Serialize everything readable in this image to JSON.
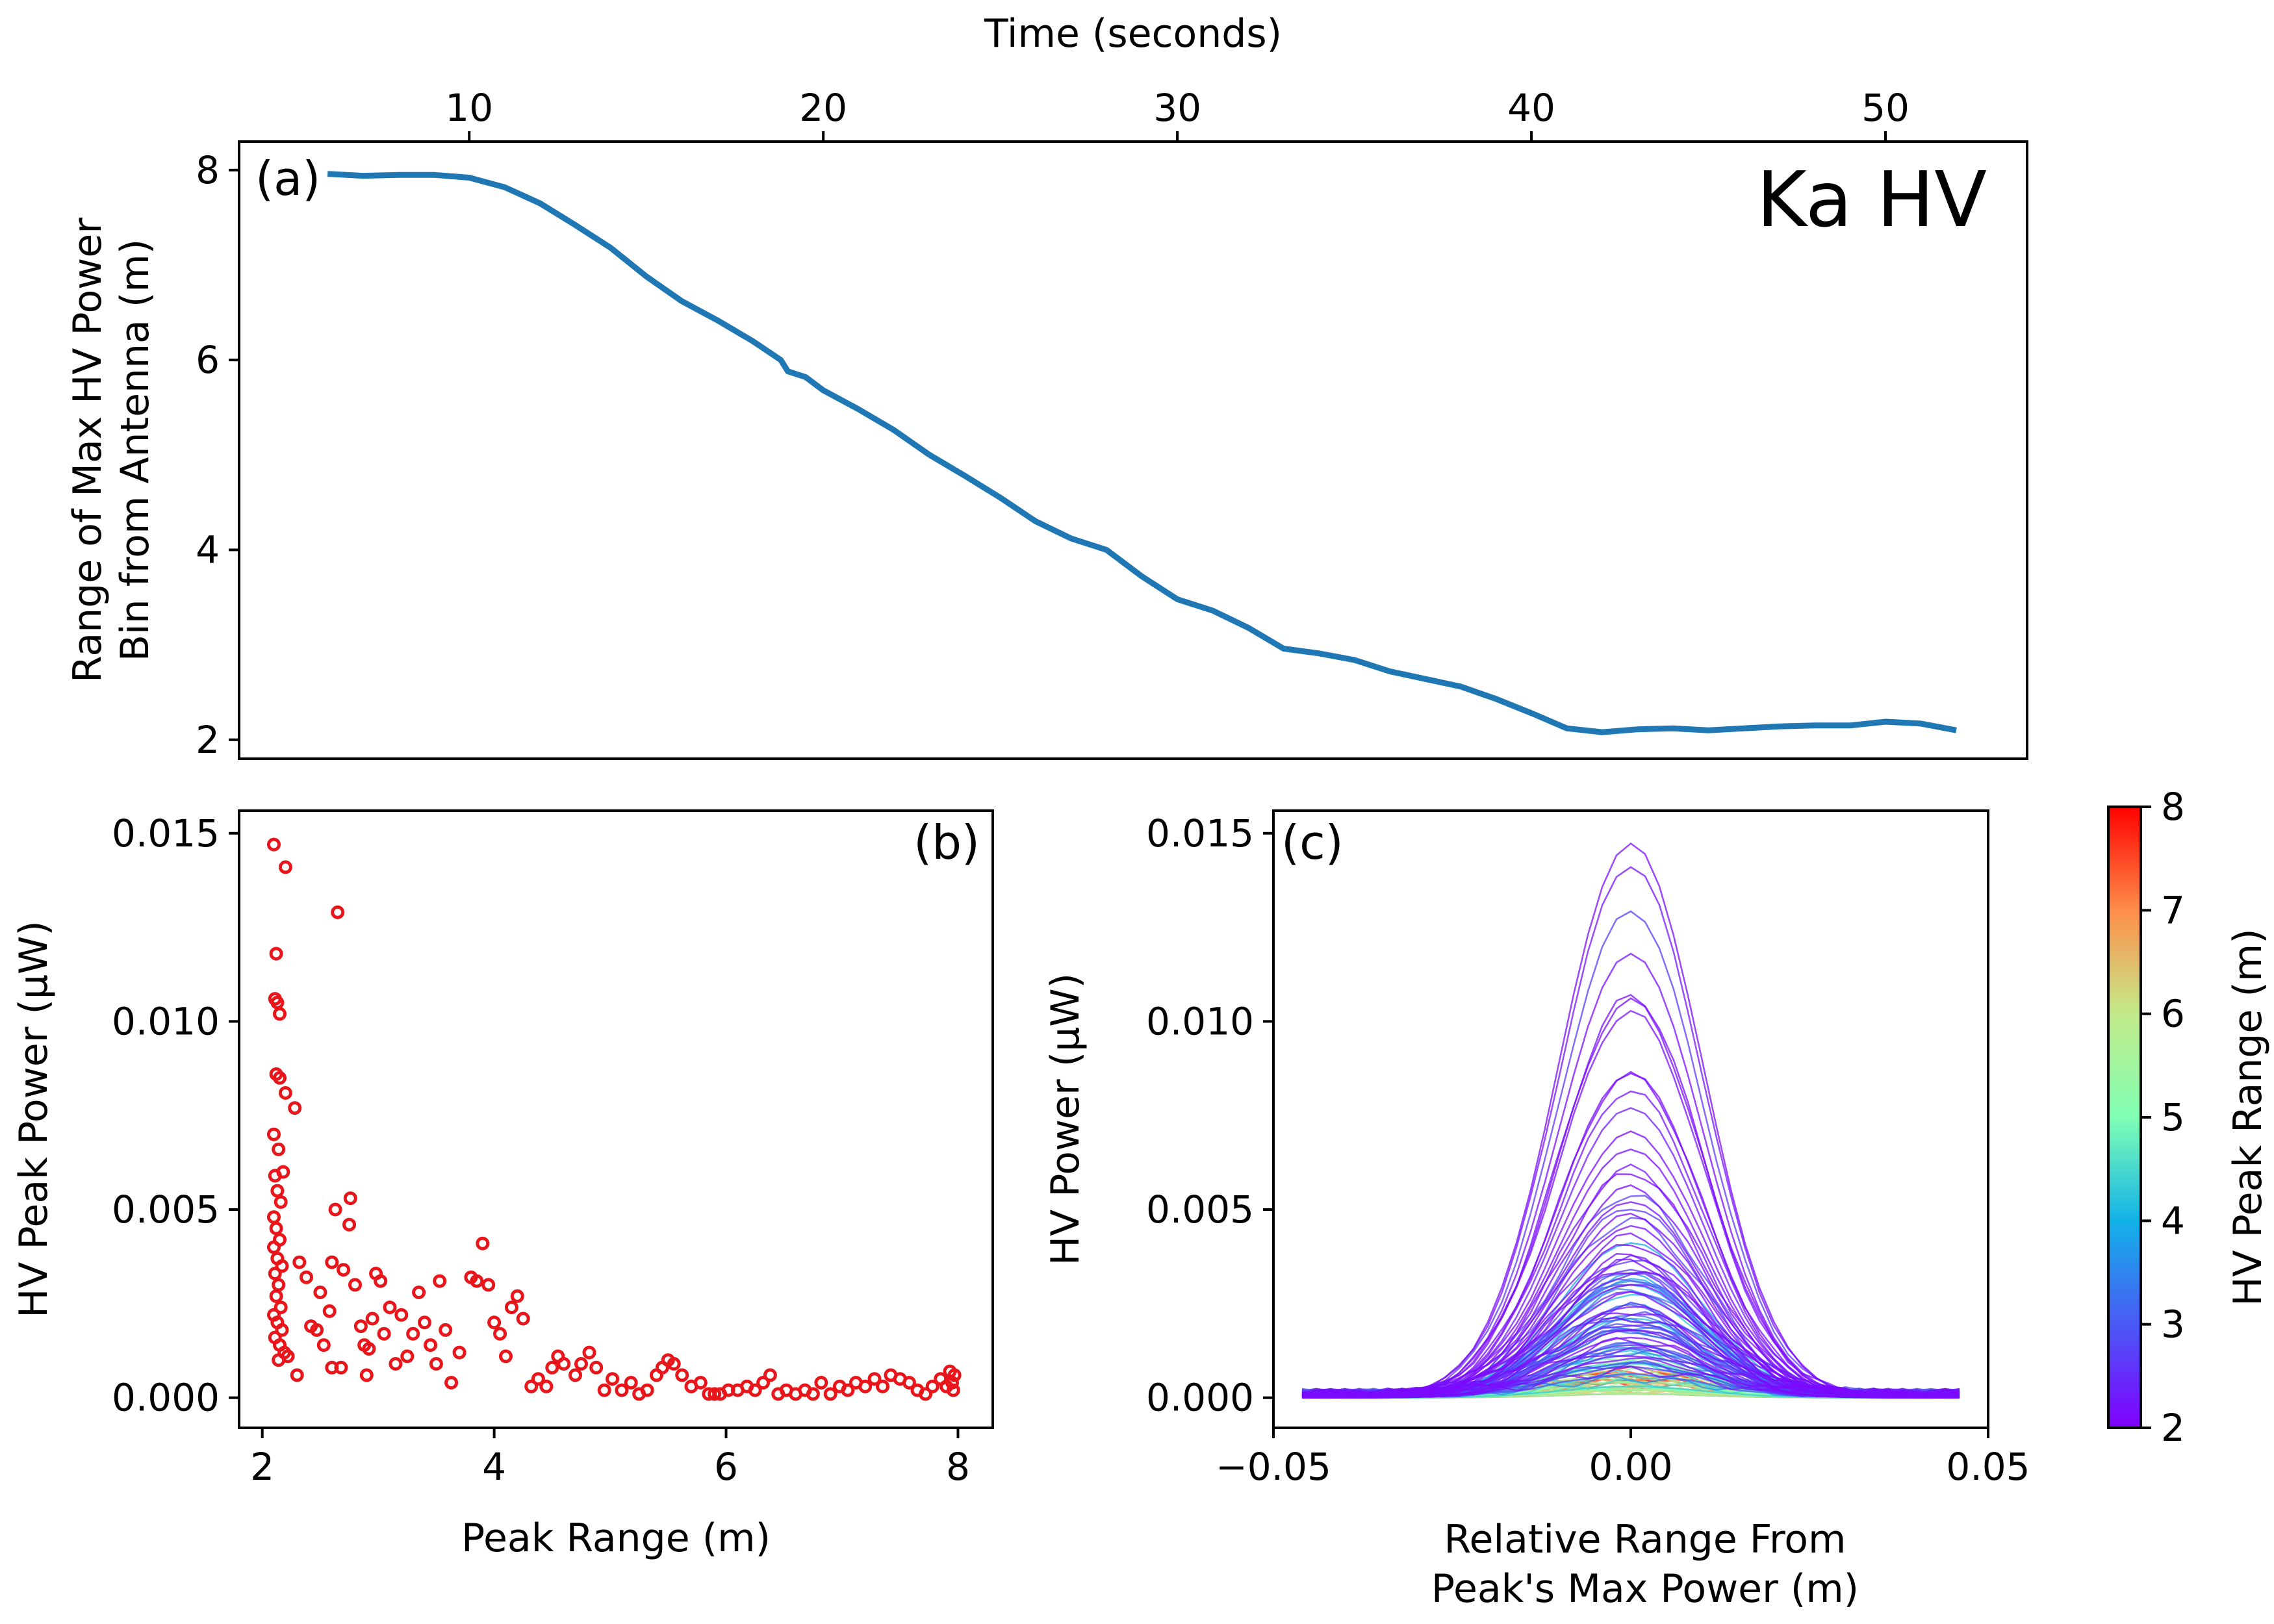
{
  "figure": {
    "annotation": "Ka HV"
  },
  "chart_data": [
    {
      "panel": "(a)",
      "type": "line",
      "xlabel": "Time (seconds)",
      "ylabel_line1": "Range of Max HV Power",
      "ylabel_line2": "Bin from Antenna (m)",
      "xlim": [
        3.5,
        54.0
      ],
      "ylim": [
        1.8,
        8.3
      ],
      "xticks": [
        10,
        20,
        30,
        40,
        50
      ],
      "yticks": [
        2,
        4,
        6,
        8
      ],
      "x_axis_position": "top",
      "line_color": "#1f77b4",
      "x": [
        6,
        7,
        8,
        9,
        10,
        11,
        12,
        13,
        14,
        15,
        16,
        17,
        18,
        18.8,
        19,
        19.5,
        20,
        21,
        22,
        23,
        24,
        25,
        26,
        27,
        28,
        29,
        30,
        31,
        32,
        33,
        34,
        35,
        36,
        37,
        38,
        39,
        40,
        41,
        42,
        43,
        44,
        45,
        46,
        47,
        48,
        49,
        50,
        51,
        52
      ],
      "y": [
        7.96,
        7.94,
        7.95,
        7.95,
        7.92,
        7.82,
        7.65,
        7.42,
        7.18,
        6.88,
        6.62,
        6.42,
        6.2,
        6.0,
        5.88,
        5.82,
        5.68,
        5.48,
        5.26,
        5.0,
        4.78,
        4.55,
        4.3,
        4.12,
        4.0,
        3.72,
        3.48,
        3.36,
        3.18,
        2.96,
        2.91,
        2.84,
        2.72,
        2.64,
        2.56,
        2.43,
        2.28,
        2.12,
        2.08,
        2.11,
        2.12,
        2.1,
        2.12,
        2.14,
        2.15,
        2.15,
        2.19,
        2.17,
        2.1
      ]
    },
    {
      "panel": "(b)",
      "type": "scatter",
      "xlabel": "Peak Range (m)",
      "ylabel": "HV Peak Power (μW)",
      "xlim": [
        1.8,
        8.3
      ],
      "ylim": [
        -0.0008,
        0.0156
      ],
      "xticks": [
        2,
        4,
        6,
        8
      ],
      "yticks": [
        0.0,
        0.005,
        0.01,
        0.015
      ],
      "ytick_labels": [
        "0.000",
        "0.005",
        "0.010",
        "0.015"
      ],
      "marker_color": "#e8161b",
      "points": [
        [
          2.1,
          0.0147
        ],
        [
          2.2,
          0.0141
        ],
        [
          2.65,
          0.0129
        ],
        [
          2.12,
          0.0118
        ],
        [
          2.11,
          0.0106
        ],
        [
          2.13,
          0.0105
        ],
        [
          2.15,
          0.0102
        ],
        [
          2.12,
          0.0086
        ],
        [
          2.15,
          0.0085
        ],
        [
          2.2,
          0.0081
        ],
        [
          2.28,
          0.0077
        ],
        [
          2.1,
          0.007
        ],
        [
          2.14,
          0.0066
        ],
        [
          2.18,
          0.006
        ],
        [
          2.11,
          0.0059
        ],
        [
          2.13,
          0.0055
        ],
        [
          2.16,
          0.0052
        ],
        [
          2.1,
          0.0048
        ],
        [
          2.12,
          0.0045
        ],
        [
          2.15,
          0.0042
        ],
        [
          2.1,
          0.004
        ],
        [
          2.13,
          0.0037
        ],
        [
          2.17,
          0.0035
        ],
        [
          2.11,
          0.0033
        ],
        [
          2.14,
          0.003
        ],
        [
          2.12,
          0.0027
        ],
        [
          2.16,
          0.0024
        ],
        [
          2.1,
          0.0022
        ],
        [
          2.13,
          0.002
        ],
        [
          2.17,
          0.0018
        ],
        [
          2.11,
          0.0016
        ],
        [
          2.15,
          0.0014
        ],
        [
          2.19,
          0.0012
        ],
        [
          2.14,
          0.001
        ],
        [
          2.22,
          0.0011
        ],
        [
          2.3,
          0.0006
        ],
        [
          2.32,
          0.0036
        ],
        [
          2.38,
          0.0032
        ],
        [
          2.42,
          0.0019
        ],
        [
          2.47,
          0.0018
        ],
        [
          2.5,
          0.0028
        ],
        [
          2.53,
          0.0014
        ],
        [
          2.58,
          0.0023
        ],
        [
          2.6,
          0.0036
        ],
        [
          2.63,
          0.005
        ],
        [
          2.6,
          0.0008
        ],
        [
          2.68,
          0.0008
        ],
        [
          2.7,
          0.0034
        ],
        [
          2.75,
          0.0046
        ],
        [
          2.76,
          0.0053
        ],
        [
          2.8,
          0.003
        ],
        [
          2.85,
          0.0019
        ],
        [
          2.88,
          0.0014
        ],
        [
          2.9,
          0.0006
        ],
        [
          2.92,
          0.0013
        ],
        [
          2.95,
          0.0021
        ],
        [
          2.98,
          0.0033
        ],
        [
          3.02,
          0.0031
        ],
        [
          3.05,
          0.0017
        ],
        [
          3.1,
          0.0024
        ],
        [
          3.15,
          0.0009
        ],
        [
          3.2,
          0.0022
        ],
        [
          3.25,
          0.0011
        ],
        [
          3.3,
          0.0017
        ],
        [
          3.35,
          0.0028
        ],
        [
          3.4,
          0.002
        ],
        [
          3.45,
          0.0014
        ],
        [
          3.5,
          0.0009
        ],
        [
          3.53,
          0.0031
        ],
        [
          3.58,
          0.0018
        ],
        [
          3.63,
          0.0004
        ],
        [
          3.7,
          0.0012
        ],
        [
          3.8,
          0.0032
        ],
        [
          3.85,
          0.0031
        ],
        [
          3.9,
          0.0041
        ],
        [
          3.95,
          0.003
        ],
        [
          4.0,
          0.002
        ],
        [
          4.05,
          0.0017
        ],
        [
          4.1,
          0.0011
        ],
        [
          4.15,
          0.0024
        ],
        [
          4.2,
          0.0027
        ],
        [
          4.25,
          0.0021
        ],
        [
          4.32,
          0.0003
        ],
        [
          4.38,
          0.0005
        ],
        [
          4.45,
          0.0003
        ],
        [
          4.5,
          0.0008
        ],
        [
          4.55,
          0.0011
        ],
        [
          4.6,
          0.0009
        ],
        [
          4.7,
          0.0006
        ],
        [
          4.75,
          0.0009
        ],
        [
          4.82,
          0.0012
        ],
        [
          4.88,
          0.0008
        ],
        [
          4.95,
          0.0002
        ],
        [
          5.02,
          0.0005
        ],
        [
          5.1,
          0.0002
        ],
        [
          5.18,
          0.0004
        ],
        [
          5.25,
          0.0001
        ],
        [
          5.32,
          0.0002
        ],
        [
          5.4,
          0.0006
        ],
        [
          5.45,
          0.0008
        ],
        [
          5.5,
          0.001
        ],
        [
          5.55,
          0.0009
        ],
        [
          5.62,
          0.0006
        ],
        [
          5.7,
          0.0003
        ],
        [
          5.78,
          0.0004
        ],
        [
          5.85,
          0.0001
        ],
        [
          5.9,
          0.0001
        ],
        [
          5.95,
          0.0001
        ],
        [
          6.02,
          0.0002
        ],
        [
          6.1,
          0.0002
        ],
        [
          6.18,
          0.0003
        ],
        [
          6.25,
          0.0002
        ],
        [
          6.32,
          0.0004
        ],
        [
          6.38,
          0.0006
        ],
        [
          6.45,
          0.0001
        ],
        [
          6.52,
          0.0002
        ],
        [
          6.6,
          0.0001
        ],
        [
          6.68,
          0.0002
        ],
        [
          6.75,
          0.0001
        ],
        [
          6.82,
          0.0004
        ],
        [
          6.9,
          0.0001
        ],
        [
          6.98,
          0.0003
        ],
        [
          7.05,
          0.0002
        ],
        [
          7.12,
          0.0004
        ],
        [
          7.2,
          0.0003
        ],
        [
          7.28,
          0.0005
        ],
        [
          7.35,
          0.0003
        ],
        [
          7.42,
          0.0006
        ],
        [
          7.5,
          0.0005
        ],
        [
          7.58,
          0.0004
        ],
        [
          7.65,
          0.0002
        ],
        [
          7.72,
          0.0001
        ],
        [
          7.78,
          0.0003
        ],
        [
          7.85,
          0.0005
        ],
        [
          7.9,
          0.0003
        ],
        [
          7.93,
          0.0007
        ],
        [
          7.95,
          0.0004
        ],
        [
          7.96,
          0.0002
        ],
        [
          7.97,
          0.0006
        ]
      ]
    },
    {
      "panel": "(c)",
      "type": "line",
      "xlabel_line1": "Relative Range From",
      "xlabel_line2": "Peak's Max Power (m)",
      "ylabel": "HV Power (μW)",
      "xlim": [
        -0.05,
        0.05
      ],
      "ylim": [
        -0.0008,
        0.0156
      ],
      "xticks": [
        -0.05,
        0.0,
        0.05
      ],
      "xtick_labels": [
        "−0.05",
        "0.00",
        "0.05"
      ],
      "yticks": [
        0.0,
        0.005,
        0.01,
        0.015
      ],
      "ytick_labels": [
        "0.000",
        "0.005",
        "0.010",
        "0.015"
      ],
      "x_extent": [
        -0.046,
        0.046
      ],
      "curve_half_width": 0.022,
      "colormap": "rainbow",
      "colorbar_label": "HV Peak Range (m)",
      "colorbar_range": [
        2,
        8
      ],
      "colorbar_ticks": [
        2,
        3,
        4,
        5,
        6,
        7,
        8
      ]
    }
  ]
}
